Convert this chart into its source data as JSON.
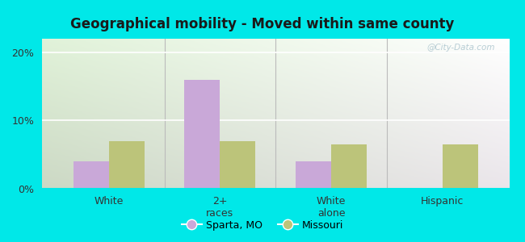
{
  "title": "Geographical mobility - Moved within same county",
  "categories": [
    "White",
    "2+\nraces",
    "White\nalone",
    "Hispanic"
  ],
  "sparta_values": [
    4.0,
    16.0,
    4.0,
    0.0
  ],
  "missouri_values": [
    7.0,
    7.0,
    6.5,
    6.5
  ],
  "sparta_color": "#c9a8d8",
  "missouri_color": "#bcc47a",
  "outer_bg": "#00e8e8",
  "ylim": [
    0,
    22
  ],
  "yticks": [
    0,
    10,
    20
  ],
  "ytick_labels": [
    "0%",
    "10%",
    "20%"
  ],
  "legend_sparta": "Sparta, MO",
  "legend_missouri": "Missouri",
  "bar_width": 0.32,
  "title_fontsize": 12,
  "watermark": "@City-Data.com"
}
